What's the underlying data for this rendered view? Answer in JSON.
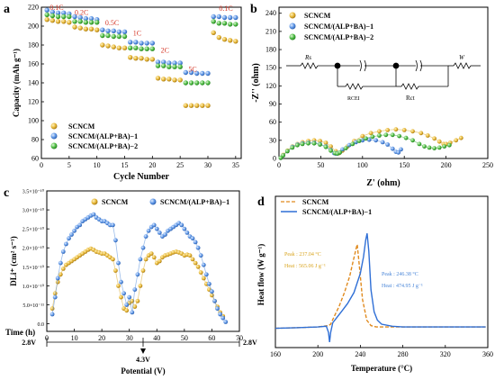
{
  "chart_data": [
    {
      "panel": "a",
      "type": "scatter",
      "xlabel": "Cycle Number",
      "ylabel": "Capacity (mAh g⁻¹)",
      "xlim": [
        0,
        36
      ],
      "ylim": [
        60,
        220
      ],
      "xticks": [
        0,
        5,
        10,
        15,
        20,
        25,
        30,
        35
      ],
      "yticks": [
        60,
        80,
        100,
        120,
        140,
        160,
        180,
        200,
        220
      ],
      "legend": [
        "SCNCM",
        "SCNCM/(ALP+BA)−1",
        "SCNCM/(ALP+BA)−2"
      ],
      "legend_position": "bottom-left",
      "rate_labels": [
        {
          "text": "0.1C",
          "x": 1.5,
          "y": 217
        },
        {
          "text": "0.2C",
          "x": 6,
          "y": 212
        },
        {
          "text": "0.5C",
          "x": 11.5,
          "y": 201
        },
        {
          "text": "1C",
          "x": 16.5,
          "y": 190
        },
        {
          "text": "2C",
          "x": 21.5,
          "y": 172
        },
        {
          "text": "5C",
          "x": 26.5,
          "y": 152
        },
        {
          "text": "0.1C",
          "x": 32,
          "y": 216
        }
      ],
      "series": [
        {
          "name": "SCNCM",
          "color": "#d9a520",
          "x": [
            1,
            2,
            3,
            4,
            5,
            6,
            7,
            8,
            9,
            10,
            11,
            12,
            13,
            14,
            15,
            16,
            17,
            18,
            19,
            20,
            21,
            22,
            23,
            24,
            25,
            26,
            27,
            28,
            29,
            30,
            31,
            32,
            33,
            34,
            35
          ],
          "y": [
            207,
            206,
            205,
            205,
            204,
            199,
            198,
            197,
            197,
            196,
            180,
            179,
            178,
            177,
            177,
            167,
            166,
            166,
            165,
            165,
            145,
            144,
            144,
            143,
            143,
            116,
            116,
            116,
            116,
            116,
            193,
            188,
            186,
            185,
            184
          ]
        },
        {
          "name": "SCNCM/(ALP+BA)−1",
          "color": "#4a86d8",
          "x": [
            1,
            2,
            3,
            4,
            5,
            6,
            7,
            8,
            9,
            10,
            11,
            12,
            13,
            14,
            15,
            16,
            17,
            18,
            19,
            20,
            21,
            22,
            23,
            24,
            25,
            26,
            27,
            28,
            29,
            30,
            31,
            32,
            33,
            34,
            35
          ],
          "y": [
            217,
            215,
            214,
            214,
            213,
            210,
            209,
            208,
            208,
            207,
            196,
            195,
            195,
            194,
            194,
            183,
            183,
            182,
            182,
            182,
            162,
            162,
            161,
            161,
            161,
            151,
            151,
            150,
            150,
            150,
            210,
            210,
            209,
            209,
            209
          ]
        },
        {
          "name": "SCNCM/(ALP+BA)−2",
          "color": "#3dab37",
          "x": [
            1,
            2,
            3,
            4,
            5,
            6,
            7,
            8,
            9,
            10,
            11,
            12,
            13,
            14,
            15,
            16,
            17,
            18,
            19,
            20,
            21,
            22,
            23,
            24,
            25,
            26,
            27,
            28,
            29,
            30,
            31,
            32,
            33,
            34,
            35
          ],
          "y": [
            212,
            211,
            210,
            210,
            210,
            205,
            205,
            204,
            204,
            204,
            190,
            190,
            189,
            189,
            189,
            177,
            177,
            176,
            176,
            176,
            158,
            158,
            157,
            157,
            157,
            140,
            140,
            140,
            140,
            140,
            205,
            203,
            203,
            202,
            202
          ]
        }
      ]
    },
    {
      "panel": "b",
      "type": "scatter",
      "xlabel": "Z' (ohm)",
      "ylabel": "-Z'' (ohm)",
      "xlim": [
        0,
        250
      ],
      "ylim": [
        0,
        250
      ],
      "xticks": [
        0,
        50,
        100,
        150,
        200,
        250
      ],
      "yticks": [
        0,
        30,
        60,
        90,
        120,
        150,
        180,
        210,
        240
      ],
      "legend": [
        "SCNCM",
        "SCNCM/(ALP+BA)−1",
        "SCNCM/(ALP+BA)−2"
      ],
      "legend_position": "top-left",
      "circuit_labels": {
        "rs": "Rs",
        "rcei": "RCEI",
        "rct": "Rct",
        "w": "W"
      },
      "series": [
        {
          "name": "SCNCM",
          "color": "#d9a520",
          "x": [
            2,
            5,
            10,
            16,
            22,
            28,
            35,
            42,
            49,
            56,
            62,
            68,
            72,
            76,
            82,
            90,
            100,
            110,
            120,
            130,
            140,
            150,
            160,
            170,
            178,
            186,
            192,
            197,
            200,
            205,
            212,
            218
          ],
          "y": [
            1,
            6,
            13,
            20,
            24,
            27,
            29,
            30,
            29,
            26,
            20,
            12,
            9,
            13,
            20,
            29,
            37,
            42,
            45,
            47,
            48,
            47,
            45,
            42,
            38,
            33,
            28,
            24,
            24,
            26,
            30,
            34
          ]
        },
        {
          "name": "SCNCM/(ALP+BA)−1",
          "color": "#4a86d8",
          "x": [
            2,
            5,
            10,
            16,
            22,
            28,
            35,
            42,
            49,
            56,
            62,
            66,
            68,
            70,
            76,
            84,
            92,
            100,
            108,
            116,
            124,
            130,
            136,
            140,
            143,
            146
          ],
          "y": [
            1,
            5,
            12,
            19,
            23,
            25,
            26,
            26,
            24,
            20,
            14,
            9,
            8,
            9,
            15,
            22,
            27,
            30,
            31,
            30,
            27,
            23,
            16,
            11,
            10,
            15
          ]
        },
        {
          "name": "SCNCM/(ALP+BA)−2",
          "color": "#3dab37",
          "x": [
            2,
            5,
            10,
            16,
            22,
            28,
            35,
            42,
            49,
            56,
            62,
            67,
            70,
            73,
            80,
            88,
            96,
            104,
            112,
            120,
            128,
            136,
            144,
            152,
            160,
            168,
            174,
            180,
            186,
            192,
            198,
            204
          ],
          "y": [
            1,
            5,
            12,
            18,
            22,
            24,
            25,
            25,
            23,
            19,
            13,
            9,
            8,
            10,
            17,
            24,
            29,
            33,
            36,
            38,
            39,
            39,
            37,
            34,
            30,
            24,
            20,
            18,
            17,
            18,
            20,
            22
          ]
        }
      ]
    },
    {
      "panel": "c",
      "type": "scatter",
      "xlabel": "Potential (V)",
      "xlabel2": "Time (h)",
      "ylabel": "DLi⁺ (cm² s⁻¹)",
      "xlim": [
        0,
        70
      ],
      "ylim": [
        -0.2,
        3.5
      ],
      "xticks": [
        0,
        10,
        20,
        30,
        40,
        50,
        60,
        70
      ],
      "yticks": [
        0.0,
        0.5,
        1.0,
        1.5,
        2.0,
        2.5,
        3.0,
        3.5
      ],
      "ytick_labels": [
        "0.0",
        "5.0×10⁻¹¹",
        "1.0×10⁻¹⁰",
        "1.5×10⁻¹⁰",
        "2.0×10⁻¹⁰",
        "2.5×10⁻¹⁰",
        "3.0×10⁻¹⁰",
        "3.5×10⁻¹⁰"
      ],
      "potential_labels": [
        "2.8V",
        "4.3V",
        "2.8V"
      ],
      "legend": [
        "SCNCM",
        "SCNCM/(ALP+BA)−1"
      ],
      "legend_position": "top",
      "series": [
        {
          "name": "SCNCM",
          "color": "#d9a520",
          "x": [
            2,
            3,
            4,
            5,
            6,
            7,
            8,
            9,
            10,
            11,
            12,
            13,
            14,
            15,
            16,
            17,
            18,
            19,
            20,
            21,
            22,
            23,
            24,
            25,
            26,
            27,
            28,
            29,
            30,
            31,
            32,
            33,
            34,
            35,
            36,
            37,
            38,
            39,
            40,
            41,
            42,
            43,
            44,
            45,
            46,
            47,
            48,
            49,
            50,
            51,
            52,
            53,
            54,
            55,
            56,
            57,
            58,
            59,
            60,
            61,
            62,
            63,
            64
          ],
          "y": [
            0.4,
            0.8,
            1.1,
            1.3,
            1.45,
            1.55,
            1.6,
            1.65,
            1.7,
            1.75,
            1.8,
            1.85,
            1.9,
            1.95,
            1.98,
            1.95,
            1.9,
            1.88,
            1.85,
            1.85,
            1.8,
            1.75,
            1.7,
            1.4,
            1.0,
            0.7,
            0.4,
            0.35,
            0.55,
            0.6,
            0.45,
            0.6,
            1.0,
            1.4,
            1.7,
            1.8,
            1.85,
            1.75,
            1.6,
            1.65,
            1.75,
            1.8,
            1.82,
            1.85,
            1.88,
            1.9,
            1.88,
            1.85,
            1.8,
            1.82,
            1.8,
            1.7,
            1.6,
            1.5,
            1.35,
            1.2,
            1.05,
            0.9,
            0.75,
            0.6,
            0.45,
            0.3,
            0.2
          ]
        },
        {
          "name": "SCNCM/(ALP+BA)−1",
          "color": "#4a86d8",
          "x": [
            2,
            3,
            4,
            5,
            6,
            7,
            8,
            9,
            10,
            11,
            12,
            13,
            14,
            15,
            16,
            17,
            18,
            19,
            20,
            21,
            22,
            23,
            24,
            25,
            26,
            27,
            28,
            29,
            30,
            31,
            32,
            33,
            34,
            35,
            36,
            37,
            38,
            39,
            40,
            41,
            42,
            43,
            44,
            45,
            46,
            47,
            48,
            49,
            50,
            51,
            52,
            53,
            54,
            55,
            56,
            57,
            58,
            59,
            60,
            61,
            62,
            63,
            64,
            65
          ],
          "y": [
            0.25,
            0.7,
            1.2,
            1.6,
            1.9,
            2.1,
            2.25,
            2.35,
            2.45,
            2.55,
            2.6,
            2.7,
            2.75,
            2.8,
            2.85,
            2.88,
            2.8,
            2.75,
            2.7,
            2.7,
            2.65,
            2.6,
            2.6,
            2.2,
            1.6,
            1.1,
            0.8,
            0.5,
            0.7,
            0.3,
            0.9,
            1.3,
            1.7,
            2.0,
            2.3,
            2.45,
            2.55,
            2.6,
            2.5,
            2.4,
            2.3,
            2.35,
            2.45,
            2.5,
            2.55,
            2.6,
            2.65,
            2.6,
            2.5,
            2.4,
            2.3,
            2.25,
            2.15,
            2.0,
            1.8,
            1.55,
            1.3,
            1.05,
            0.85,
            0.6,
            0.4,
            0.25,
            0.15,
            0.05
          ]
        }
      ]
    },
    {
      "panel": "d",
      "type": "line",
      "xlabel": "Temperature (°C)",
      "ylabel": "Heat flow (W g⁻¹)",
      "xlim": [
        160,
        360
      ],
      "ylim": [
        -1,
        10
      ],
      "xticks": [
        160,
        200,
        240,
        280,
        320,
        360
      ],
      "legend": [
        "SCNCM",
        "SCNCM/(ALP+BA)−1"
      ],
      "legend_position": "top-left",
      "annotations": [
        {
          "text": "Peak : 237.04 °C",
          "color": "#d9a520"
        },
        {
          "text": "Heat : 565.06 J g⁻¹",
          "color": "#d9a520"
        },
        {
          "text": "Peak : 246.38 °C",
          "color": "#4a86d8"
        },
        {
          "text": "Heat : 474.95 J g⁻¹",
          "color": "#4a86d8"
        }
      ],
      "series": [
        {
          "name": "SCNCM",
          "color": "#e08a1e",
          "dash": true,
          "x": [
            160,
            180,
            200,
            210,
            212,
            215,
            220,
            225,
            230,
            233,
            236,
            237.04,
            239,
            242,
            246,
            250,
            255,
            260,
            280,
            300,
            320,
            340,
            358
          ],
          "y": [
            0.4,
            0.45,
            0.5,
            0.6,
            0.7,
            1.2,
            2.0,
            3.0,
            4.2,
            5.2,
            6.2,
            6.5,
            5.0,
            2.5,
            1.0,
            0.6,
            0.5,
            0.5,
            0.5,
            0.5,
            0.5,
            0.5,
            0.5
          ]
        },
        {
          "name": "SCNCM/(ALP+BA)−1",
          "color": "#2f6fd6",
          "dash": false,
          "x": [
            160,
            180,
            200,
            208,
            210,
            211,
            212,
            214,
            218,
            222,
            228,
            234,
            240,
            243,
            245,
            246.38,
            248,
            250,
            253,
            256,
            260,
            270,
            280,
            300,
            320,
            340,
            358
          ],
          "y": [
            0.4,
            0.45,
            0.5,
            0.55,
            0.1,
            -0.6,
            0.1,
            0.8,
            1.2,
            1.6,
            2.2,
            3.0,
            4.4,
            5.6,
            6.8,
            7.3,
            6.0,
            3.2,
            1.6,
            1.0,
            0.7,
            0.55,
            0.5,
            0.5,
            0.5,
            0.5,
            0.5
          ]
        }
      ]
    }
  ],
  "panel_labels": [
    "a",
    "b",
    "c",
    "d"
  ]
}
